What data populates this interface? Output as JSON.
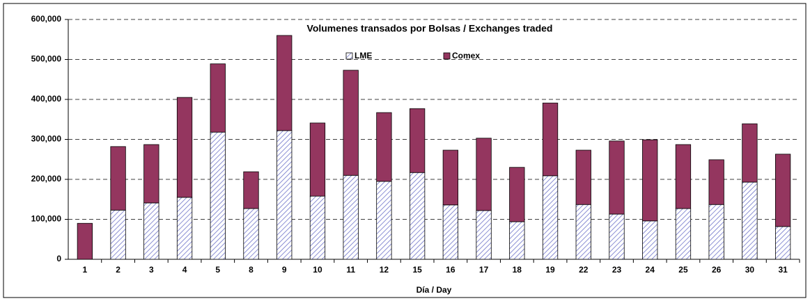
{
  "chart_data": {
    "type": "stacked_bar",
    "title": "Volumenes transados por Bolsas / Exchanges traded",
    "x_label": "Día / Day",
    "categories": [
      "1",
      "2",
      "3",
      "4",
      "5",
      "8",
      "9",
      "10",
      "11",
      "12",
      "15",
      "16",
      "17",
      "18",
      "19",
      "22",
      "23",
      "24",
      "25",
      "26",
      "30",
      "31"
    ],
    "series": [
      {
        "name": "LME",
        "color": "#6f74c9",
        "pattern": "hatch",
        "values": [
          0,
          123000,
          141000,
          155000,
          318000,
          127000,
          322000,
          158000,
          210000,
          195000,
          217000,
          136000,
          122000,
          94000,
          209000,
          137000,
          113000,
          96000,
          127000,
          137000,
          193000,
          82000
        ]
      },
      {
        "name": "Comex",
        "color": "#94365f",
        "values": [
          90000,
          159000,
          146000,
          250000,
          171000,
          92000,
          238000,
          183000,
          263000,
          172000,
          160000,
          137000,
          181000,
          136000,
          182000,
          136000,
          183000,
          203000,
          160000,
          112000,
          146000,
          181000
        ]
      }
    ],
    "ylim": [
      0,
      600000
    ],
    "yticks": [
      0,
      {
        "value": 100000,
        "label": "100,000"
      },
      {
        "value": 200000,
        "label": "200,000"
      },
      {
        "value": 300000,
        "label": "300,000"
      },
      {
        "value": 400000,
        "label": "400,000"
      },
      {
        "value": 500000,
        "label": "500,000"
      },
      {
        "value": 600000,
        "label": "600,000"
      }
    ],
    "grid": true
  }
}
